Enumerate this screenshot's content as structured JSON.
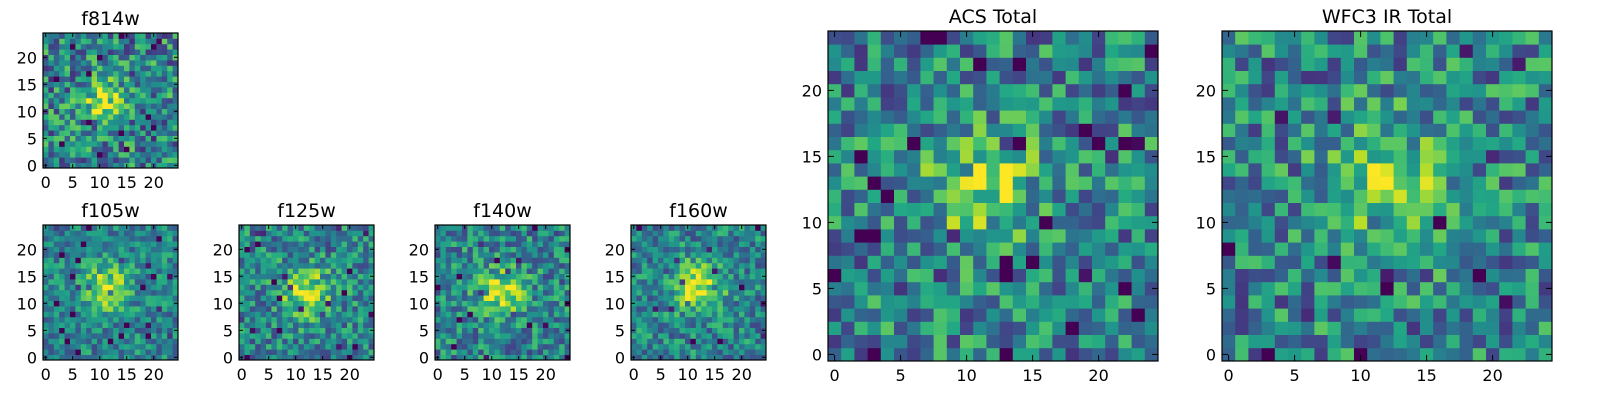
{
  "figure": {
    "description_visible": false
  },
  "chart_data": [
    {
      "id": "f814w",
      "type": "heatmap",
      "title": "f814w",
      "grid_size": 25,
      "xlim": [
        0,
        24
      ],
      "ylim": [
        0,
        24
      ],
      "xticks": [
        0,
        5,
        10,
        15,
        20
      ],
      "yticks": [
        0,
        5,
        10,
        15,
        20
      ],
      "peak": [
        11,
        12
      ],
      "peak_width": 2.6,
      "peak_strength": 0.75,
      "noise": 0.32,
      "colormap": "viridis",
      "seed": 11
    },
    {
      "id": "f105w",
      "type": "heatmap",
      "title": "f105w",
      "grid_size": 25,
      "xlim": [
        0,
        24
      ],
      "ylim": [
        0,
        24
      ],
      "xticks": [
        0,
        5,
        10,
        15,
        20
      ],
      "yticks": [
        0,
        5,
        10,
        15,
        20
      ],
      "peak": [
        11,
        13
      ],
      "peak_width": 3.0,
      "peak_strength": 0.8,
      "noise": 0.22,
      "colormap": "viridis",
      "seed": 23
    },
    {
      "id": "f125w",
      "type": "heatmap",
      "title": "f125w",
      "grid_size": 25,
      "xlim": [
        0,
        24
      ],
      "ylim": [
        0,
        24
      ],
      "xticks": [
        0,
        5,
        10,
        15,
        20
      ],
      "yticks": [
        0,
        5,
        10,
        15,
        20
      ],
      "peak": [
        12,
        12
      ],
      "peak_width": 3.2,
      "peak_strength": 0.75,
      "noise": 0.26,
      "colormap": "viridis",
      "seed": 37
    },
    {
      "id": "f140w",
      "type": "heatmap",
      "title": "f140w",
      "grid_size": 25,
      "xlim": [
        0,
        24
      ],
      "ylim": [
        0,
        24
      ],
      "xticks": [
        0,
        5,
        10,
        15,
        20
      ],
      "yticks": [
        0,
        5,
        10,
        15,
        20
      ],
      "peak": [
        12,
        12
      ],
      "peak_width": 3.0,
      "peak_strength": 0.75,
      "noise": 0.26,
      "colormap": "viridis",
      "seed": 41
    },
    {
      "id": "f160w",
      "type": "heatmap",
      "title": "f160w",
      "grid_size": 25,
      "xlim": [
        0,
        24
      ],
      "ylim": [
        0,
        24
      ],
      "xticks": [
        0,
        5,
        10,
        15,
        20
      ],
      "yticks": [
        0,
        5,
        10,
        15,
        20
      ],
      "peak": [
        12,
        13
      ],
      "peak_width": 3.2,
      "peak_strength": 0.8,
      "noise": 0.24,
      "colormap": "viridis",
      "seed": 53
    },
    {
      "id": "acs_total",
      "type": "heatmap",
      "title": "ACS Total",
      "grid_size": 25,
      "xlim": [
        0,
        24
      ],
      "ylim": [
        0,
        24
      ],
      "xticks": [
        0,
        5,
        10,
        15,
        20
      ],
      "yticks": [
        0,
        5,
        10,
        15,
        20
      ],
      "peak": [
        11,
        13
      ],
      "peak_width": 2.8,
      "peak_strength": 0.7,
      "noise": 0.3,
      "colormap": "viridis",
      "seed": 67
    },
    {
      "id": "wfc3_ir_total",
      "type": "heatmap",
      "title": "WFC3 IR Total",
      "grid_size": 25,
      "xlim": [
        0,
        24
      ],
      "ylim": [
        0,
        24
      ],
      "xticks": [
        0,
        5,
        10,
        15,
        20
      ],
      "yticks": [
        0,
        5,
        10,
        15,
        20
      ],
      "peak": [
        12,
        13
      ],
      "peak_width": 3.2,
      "peak_strength": 0.65,
      "noise": 0.3,
      "colormap": "viridis",
      "seed": 79
    }
  ]
}
